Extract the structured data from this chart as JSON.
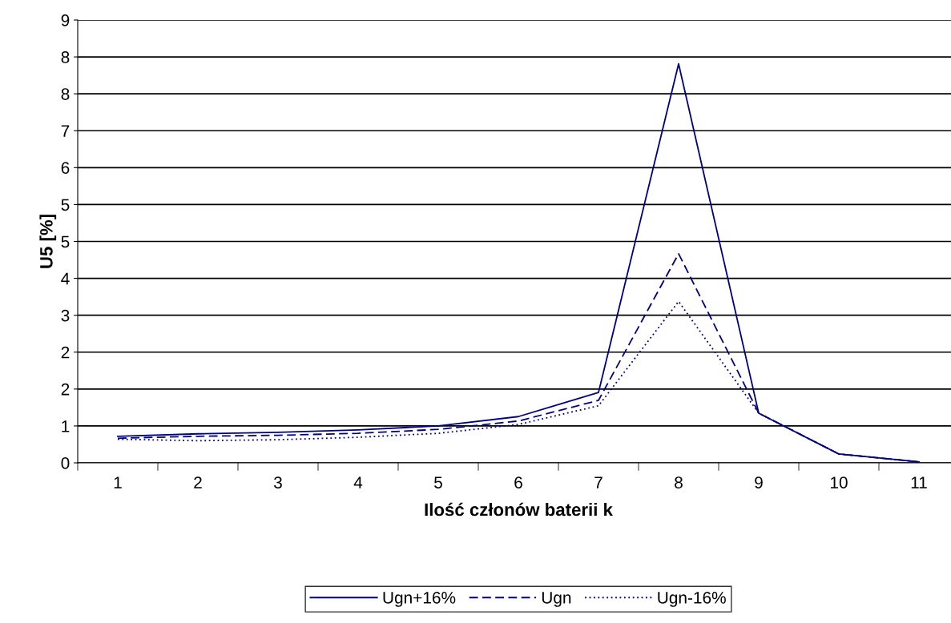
{
  "chart_data": {
    "type": "line",
    "xlabel": "Ilość członów baterii k",
    "ylabel": "U5 [%]",
    "categories": [
      "1",
      "2",
      "3",
      "4",
      "5",
      "6",
      "7",
      "8",
      "9",
      "10",
      "11"
    ],
    "series": [
      {
        "name": "Ugn+16%",
        "color": "#000080",
        "line_style": "solid",
        "values": [
          0.54,
          0.59,
          0.62,
          0.67,
          0.75,
          0.94,
          1.43,
          8.11,
          1.01,
          0.18,
          0.02
        ]
      },
      {
        "name": "Ugn",
        "color": "#000080",
        "line_style": "dashed",
        "values": [
          0.5,
          0.54,
          0.56,
          0.6,
          0.68,
          0.85,
          1.27,
          4.25,
          1.01,
          0.18,
          0.02
        ]
      },
      {
        "name": "Ugn-16%",
        "color": "#000080",
        "line_style": "dotted",
        "values": [
          0.48,
          0.45,
          0.47,
          0.52,
          0.6,
          0.78,
          1.16,
          3.28,
          1.01,
          0.18,
          0.02
        ]
      }
    ],
    "ylim": [
      0,
      9
    ],
    "yticks": [
      0,
      {
        "value": 0.75,
        "label": "1"
      },
      {
        "value": 1.5,
        "label": "2"
      },
      {
        "value": 2.25,
        "label": "2"
      },
      3,
      {
        "value": 3.75,
        "label": "4"
      },
      {
        "value": 4.5,
        "label": "5"
      },
      {
        "value": 5.25,
        "label": "5"
      },
      6,
      {
        "value": 6.75,
        "label": "7"
      },
      {
        "value": 7.5,
        "label": "8"
      },
      {
        "value": 8.25,
        "label": "8"
      },
      9
    ],
    "grid": "y",
    "legend": "bottom",
    "marker": "none"
  }
}
